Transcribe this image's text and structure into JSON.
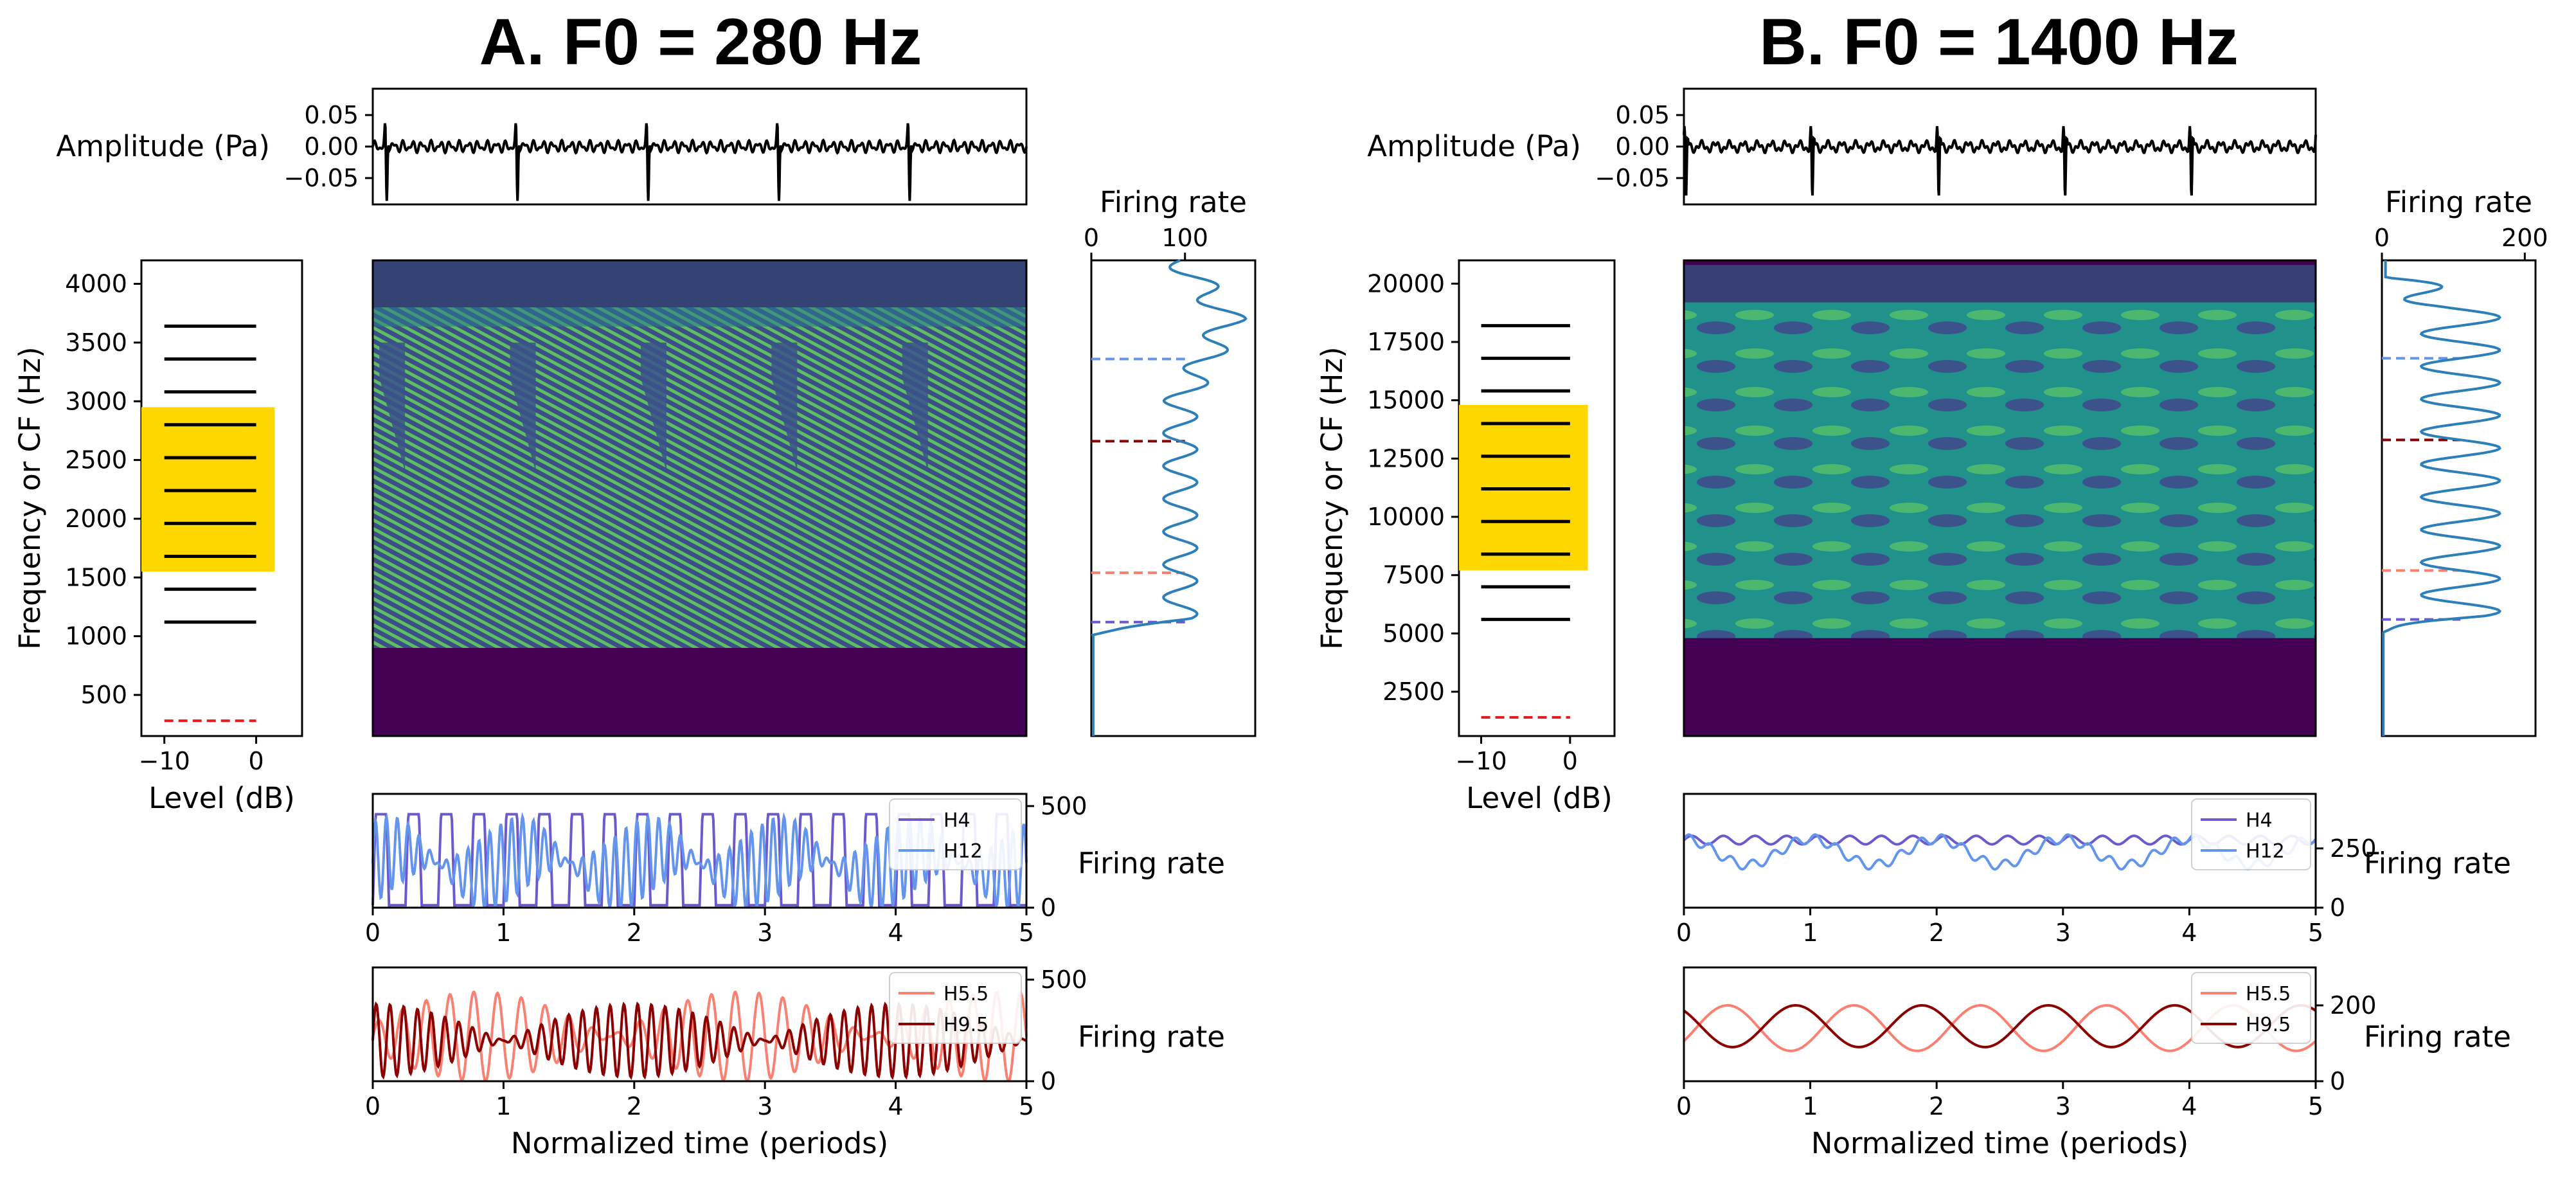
{
  "colors": {
    "band": "#FFD700",
    "harmonic_line": "#000000",
    "f0_dash": "#e41a1c",
    "profile": "#2c7fb8",
    "H4": "#6a5acd",
    "H12": "#6495ed",
    "H5_5": "#fa8072",
    "H9_5": "#8b0000",
    "spec_low": "#440154",
    "spec_mid": "#21918c",
    "spec_high": "#5ec962"
  },
  "panels": [
    {
      "title": "A. F0 = 280 Hz",
      "f0_hz": 280,
      "level_ticks": [
        "−10",
        "0"
      ],
      "freq_ticks": [
        "500",
        "1000",
        "1500",
        "2000",
        "2500",
        "3000",
        "3500",
        "4000"
      ],
      "freq_tick_values": [
        500,
        1000,
        1500,
        2000,
        2500,
        3000,
        3500,
        4000
      ],
      "freq_range": [
        150,
        4200
      ],
      "band_hz": [
        1550,
        2950
      ],
      "harmonics_hz": [
        1120,
        1400,
        1680,
        1960,
        2240,
        2520,
        2800,
        3080,
        3360,
        3640
      ],
      "marker_freqs": {
        "H12": 3360,
        "H9_5": 2660,
        "H5_5": 1540,
        "H4": 1120
      },
      "profile_ticks": [
        "0",
        "100"
      ],
      "profile_tick_values": [
        0,
        100
      ],
      "profile_max": 175,
      "wave_ticks": [
        "0.05",
        "0.00",
        "−0.05"
      ],
      "upper_rate_ticks": [
        "500",
        "0"
      ],
      "upper_rate_tick_values": [
        500,
        0
      ],
      "upper_rate_max": 560,
      "lower_rate_ticks": [
        "500",
        "0"
      ],
      "lower_rate_tick_values": [
        500,
        0
      ],
      "lower_rate_max": 560,
      "show_bottom_xlabel_upper": false
    },
    {
      "title": "B. F0 = 1400 Hz",
      "f0_hz": 1400,
      "level_ticks": [
        "−10",
        "0"
      ],
      "freq_ticks": [
        "2500",
        "5000",
        "7500",
        "10000",
        "12500",
        "15000",
        "17500",
        "20000"
      ],
      "freq_tick_values": [
        2500,
        5000,
        7500,
        10000,
        12500,
        15000,
        17500,
        20000
      ],
      "freq_range": [
        600,
        21000
      ],
      "band_hz": [
        7700,
        14800
      ],
      "harmonics_hz": [
        5600,
        7000,
        8400,
        9800,
        11200,
        12600,
        14000,
        15400,
        16800,
        18200
      ],
      "marker_freqs": {
        "H12": 16800,
        "H9_5": 13300,
        "H5_5": 7700,
        "H4": 5600
      },
      "profile_ticks": [
        "0",
        "200"
      ],
      "profile_tick_values": [
        0,
        200
      ],
      "profile_max": 215,
      "wave_ticks": [
        "0.05",
        "0.00",
        "−0.05"
      ],
      "upper_rate_ticks": [
        "250",
        "0"
      ],
      "upper_rate_tick_values": [
        250,
        0
      ],
      "upper_rate_max": 480,
      "lower_rate_ticks": [
        "200",
        "0"
      ],
      "lower_rate_tick_values": [
        200,
        0
      ],
      "lower_rate_max": 300,
      "show_bottom_xlabel_upper": false
    }
  ],
  "labels": {
    "amplitude": "Amplitude (Pa)",
    "freq_axis": "Frequency or CF (Hz)",
    "level_axis": "Level (dB)",
    "firing_rate": "Firing rate",
    "time_axis": "Normalized time (periods)"
  },
  "time_ticks": [
    "0",
    "1",
    "2",
    "3",
    "4",
    "5"
  ],
  "chart_data": [
    {
      "type": "line",
      "panel": "A",
      "title": "A. F0 = 280 Hz",
      "description_series": [
        {
          "name": "H4",
          "x": [
            0,
            0.25,
            0.5,
            0.75,
            1,
            1.25,
            1.5,
            1.75,
            2,
            2.25,
            2.5,
            2.75,
            3,
            3.25,
            3.5,
            3.75,
            4,
            4.25,
            4.5,
            4.75,
            5
          ],
          "values": [
            0,
            450,
            0,
            450,
            0,
            450,
            0,
            450,
            0,
            450,
            0,
            450,
            0,
            450,
            0,
            450,
            0,
            450,
            0,
            450,
            0
          ]
        },
        {
          "name": "H12",
          "x": [
            0,
            0.5,
            1,
            1.5,
            2,
            2.5,
            3,
            3.5,
            4,
            4.5,
            5
          ],
          "values": [
            300,
            100,
            350,
            80,
            320,
            90,
            340,
            100,
            300,
            90,
            300
          ]
        },
        {
          "name": "H5.5",
          "x": [
            0,
            0.5,
            1,
            1.5,
            2,
            2.5,
            3,
            3.5,
            4,
            4.5,
            5
          ],
          "values": [
            120,
            420,
            150,
            450,
            130,
            430,
            150,
            420,
            130,
            400,
            120
          ]
        },
        {
          "name": "H9.5",
          "x": [
            0,
            0.5,
            1,
            1.5,
            2,
            2.5,
            3,
            3.5,
            4,
            4.5,
            5
          ],
          "values": [
            280,
            180,
            300,
            160,
            290,
            170,
            300,
            160,
            280,
            170,
            280
          ]
        }
      ],
      "xlabel": "Normalized time (periods)",
      "ylabel": "Firing rate",
      "xlim": [
        0,
        5
      ],
      "ylim": [
        0,
        560
      ]
    },
    {
      "type": "line",
      "panel": "B",
      "title": "B. F0 = 1400 Hz",
      "description_series": [
        {
          "name": "H4",
          "x": [
            0,
            0.5,
            1,
            1.5,
            2,
            2.5,
            3,
            3.5,
            4,
            4.5,
            5
          ],
          "values": [
            260,
            290,
            260,
            290,
            260,
            290,
            260,
            290,
            260,
            290,
            260
          ]
        },
        {
          "name": "H12",
          "x": [
            0,
            0.3,
            0.8,
            1.3,
            1.8,
            2.3,
            2.8,
            3.3,
            3.8,
            4.3,
            4.8,
            5
          ],
          "values": [
            250,
            180,
            280,
            180,
            280,
            180,
            280,
            180,
            280,
            180,
            280,
            250
          ]
        },
        {
          "name": "H5.5",
          "x": [
            0,
            0.25,
            0.75,
            1.25,
            1.75,
            2.25,
            2.75,
            3.25,
            3.75,
            4.25,
            4.75,
            5
          ],
          "values": [
            150,
            80,
            200,
            80,
            200,
            80,
            200,
            80,
            200,
            80,
            200,
            150
          ]
        },
        {
          "name": "H9.5",
          "x": [
            0,
            0.25,
            0.75,
            1.25,
            1.75,
            2.25,
            2.75,
            3.25,
            3.75,
            4.25,
            4.75,
            5
          ],
          "values": [
            150,
            200,
            90,
            200,
            90,
            200,
            90,
            200,
            90,
            200,
            90,
            150
          ]
        }
      ],
      "xlabel": "Normalized time (periods)",
      "ylabel": "Firing rate",
      "xlim": [
        0,
        5
      ],
      "ylim": [
        0,
        300
      ]
    }
  ]
}
